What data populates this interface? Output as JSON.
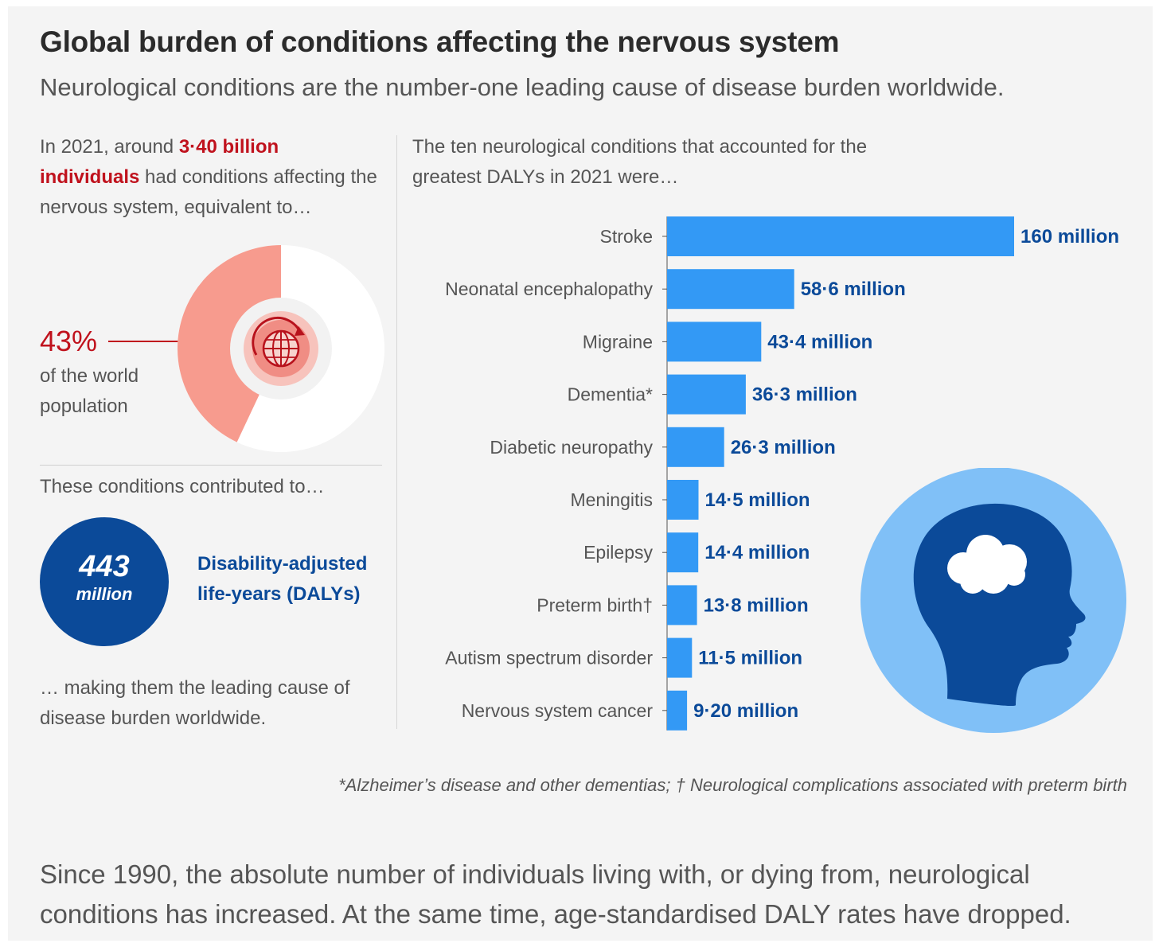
{
  "header": {
    "title": "Global burden of conditions affecting the nervous system",
    "subtitle": "Neurological conditions are the number-one leading cause of disease burden worldwide."
  },
  "left_panel": {
    "intro_prefix": "In 2021, around ",
    "intro_highlight": "3·40 billion individuals",
    "intro_suffix": " had conditions affecting the nervous system, equivalent to…",
    "percent_value": "43%",
    "percent_caption": "of the world population",
    "donut_fraction": 0.43,
    "contributed_text": "These conditions contributed to…",
    "daly_number": "443",
    "daly_unit": "million",
    "daly_label": "Disability-adjusted life-years (DALYs)",
    "outro": "… making them the leading cause of disease burden worldwide."
  },
  "right_panel": {
    "intro": "The ten neurological conditions that accounted for the greatest DALYs in 2021 were…",
    "footnote": "*Alzheimer’s disease and other dementias; † Neurological complications associated with preterm birth"
  },
  "bottom_text": "Since 1990, the absolute number of individuals living with, or dying from, neurological conditions has increased. At the same time, age-standardised DALY rates have dropped.",
  "colors": {
    "bar": "#3399f5",
    "value_label": "#0b4a99",
    "highlight_red": "#c0121d",
    "donut_fill": "#f79b8e",
    "head_dark": "#0b4a99",
    "head_circle": "#80c0f7"
  },
  "icons": [
    "globe-icon",
    "human-head-brain-icon"
  ],
  "chart_data": {
    "type": "bar",
    "orientation": "horizontal",
    "categories": [
      "Stroke",
      "Neonatal encephalopathy",
      "Migraine",
      "Dementia*",
      "Diabetic neuropathy",
      "Meningitis",
      "Epilepsy",
      "Preterm birth†",
      "Autism spectrum disorder",
      "Nervous system cancer"
    ],
    "values": [
      160,
      58.6,
      43.4,
      36.3,
      26.3,
      14.5,
      14.4,
      13.8,
      11.5,
      9.2
    ],
    "value_labels": [
      "160 million",
      "58·6 million",
      "43·4 million",
      "36·3 million",
      "26·3 million",
      "14·5 million",
      "14·4 million",
      "13·8 million",
      "11·5 million",
      "9·20 million"
    ],
    "unit": "DALYs (millions)",
    "xlim": [
      0,
      160
    ],
    "grid": false,
    "legend": "none"
  }
}
